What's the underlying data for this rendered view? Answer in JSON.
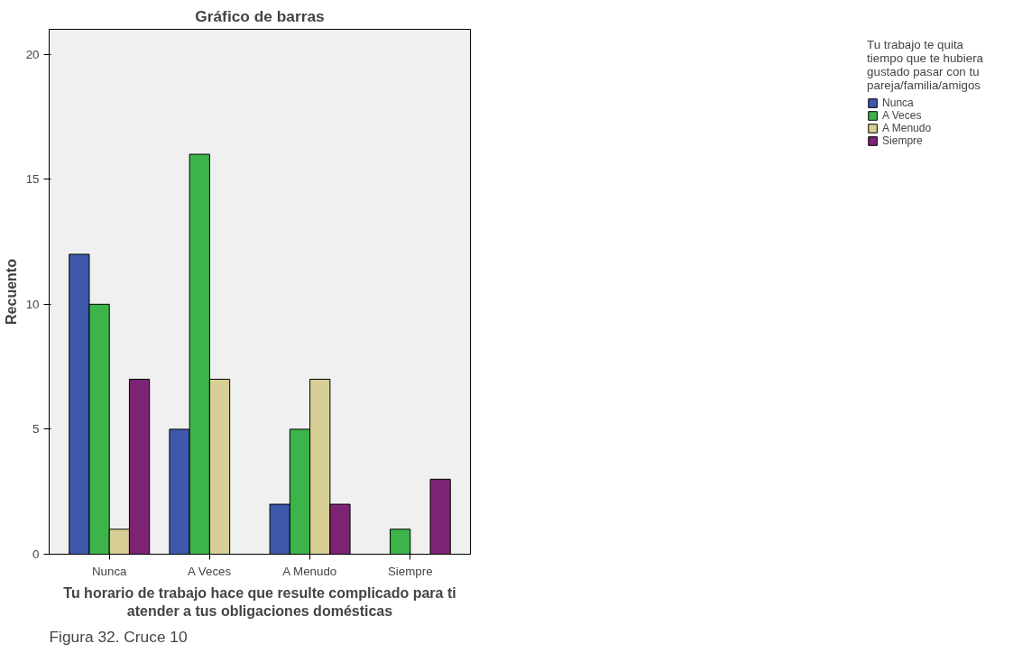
{
  "chart_data": {
    "type": "bar",
    "title": "Gráfico de barras",
    "xlabel": "Tu horario de trabajo hace que resulte complicado para ti atender a tus obligaciones domésticas",
    "ylabel": "Recuento",
    "legend_title": "Tu trabajo te quita tiempo que te hubiera gustado pasar con tu pareja/familia/amigos",
    "categories": [
      "Nunca",
      "A Veces",
      "A Menudo",
      "Siempre"
    ],
    "series": [
      {
        "name": "Nunca",
        "color": "#3e58ac",
        "values": [
          12,
          5,
          2,
          null
        ]
      },
      {
        "name": "A Veces",
        "color": "#3cb44a",
        "values": [
          10,
          16,
          5,
          1
        ]
      },
      {
        "name": "A Menudo",
        "color": "#d8cf96",
        "values": [
          1,
          7,
          7,
          null
        ]
      },
      {
        "name": "Siempre",
        "color": "#7d2374",
        "values": [
          7,
          null,
          2,
          3
        ]
      }
    ],
    "ylim": [
      0,
      21
    ],
    "yticks": [
      0,
      5,
      10,
      15,
      20
    ],
    "grid": false,
    "legend": "right",
    "annotations": [
      "Figura 32. Cruce 10"
    ]
  }
}
